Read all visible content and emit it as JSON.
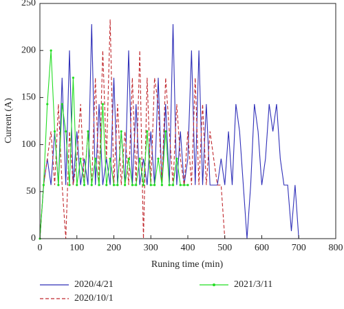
{
  "chart_data": {
    "type": "line",
    "x_label": "Runing time (min)",
    "y_label": "Current (A)",
    "xlim": [
      0,
      800
    ],
    "xticks": [
      0,
      100,
      200,
      300,
      400,
      500,
      600,
      700,
      800
    ],
    "ylim": [
      0,
      250
    ],
    "yticks": [
      0,
      50,
      100,
      150,
      200,
      250
    ],
    "legend": "bottom",
    "series": [
      {
        "name": "2020/4/21",
        "color": "#2e2eb8",
        "style": "solid",
        "x": [
          0,
          10,
          20,
          30,
          40,
          50,
          60,
          70,
          80,
          90,
          100,
          110,
          120,
          130,
          140,
          150,
          160,
          170,
          180,
          190,
          200,
          210,
          220,
          230,
          240,
          250,
          260,
          270,
          280,
          290,
          300,
          310,
          320,
          330,
          340,
          350,
          360,
          370,
          380,
          390,
          400,
          410,
          420,
          430,
          440,
          450,
          460,
          470,
          480,
          490,
          500,
          510,
          520,
          530,
          540,
          550,
          560,
          570,
          580,
          590,
          600,
          610,
          620,
          630,
          640,
          650,
          660,
          670,
          680,
          690,
          700
        ],
        "values": [
          0,
          57,
          85,
          57,
          114,
          57,
          171,
          57,
          200,
          57,
          114,
          57,
          85,
          57,
          228,
          57,
          143,
          57,
          85,
          57,
          171,
          57,
          114,
          57,
          200,
          57,
          143,
          57,
          85,
          57,
          114,
          57,
          171,
          57,
          143,
          57,
          228,
          57,
          114,
          57,
          85,
          200,
          57,
          200,
          57,
          143,
          57,
          57,
          57,
          85,
          57,
          114,
          57,
          143,
          114,
          57,
          0,
          57,
          143,
          114,
          57,
          85,
          143,
          114,
          143,
          85,
          57,
          57,
          8,
          57,
          0
        ]
      },
      {
        "name": "2020/10/1",
        "color": "#c0282d",
        "style": "dashed",
        "x": [
          0,
          10,
          20,
          30,
          40,
          50,
          60,
          70,
          80,
          90,
          100,
          110,
          120,
          130,
          140,
          150,
          160,
          170,
          180,
          190,
          200,
          210,
          220,
          230,
          240,
          250,
          260,
          270,
          280,
          290,
          300,
          310,
          320,
          330,
          340,
          350,
          360,
          370,
          380,
          390,
          400,
          410,
          420,
          430,
          440,
          450,
          460,
          470,
          480,
          490,
          500
        ],
        "values": [
          0,
          57,
          85,
          114,
          57,
          143,
          57,
          0,
          114,
          57,
          85,
          143,
          57,
          114,
          57,
          171,
          57,
          200,
          85,
          233,
          57,
          143,
          57,
          114,
          57,
          171,
          57,
          200,
          0,
          171,
          57,
          171,
          143,
          57,
          171,
          114,
          57,
          143,
          85,
          57,
          114,
          57,
          171,
          57,
          143,
          57,
          114,
          85,
          57,
          57,
          0
        ]
      },
      {
        "name": "2021/3/11",
        "color": "#22dd22",
        "style": "solid",
        "markers": true,
        "x": [
          0,
          10,
          20,
          30,
          40,
          50,
          60,
          70,
          80,
          90,
          100,
          110,
          120,
          130,
          140,
          150,
          160,
          170,
          180,
          190,
          200,
          210,
          220,
          230,
          240,
          250,
          260,
          270,
          280,
          290,
          300,
          310,
          320,
          330,
          340,
          350,
          360,
          370,
          380,
          390,
          400
        ],
        "values": [
          0,
          57,
          143,
          200,
          114,
          57,
          143,
          114,
          57,
          171,
          57,
          85,
          57,
          114,
          57,
          85,
          57,
          143,
          57,
          85,
          57,
          57,
          114,
          57,
          85,
          57,
          57,
          85,
          57,
          114,
          57,
          57,
          85,
          57,
          114,
          57,
          57,
          85,
          57,
          57,
          57
        ]
      }
    ]
  }
}
